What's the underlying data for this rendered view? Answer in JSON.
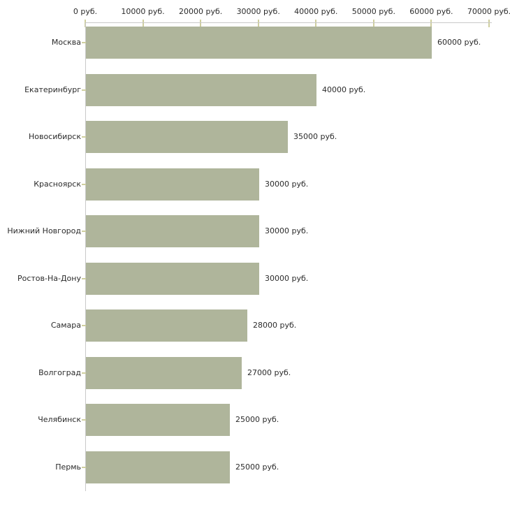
{
  "chart_data": {
    "type": "bar",
    "orientation": "horizontal",
    "title": "",
    "xlabel": "",
    "ylabel": "",
    "unit": "руб.",
    "categories": [
      "Москва",
      "Екатеринбург",
      "Новосибирск",
      "Красноярск",
      "Нижний Новгород",
      "Ростов-На-Дону",
      "Самара",
      "Волгоград",
      "Челябинск",
      "Пермь"
    ],
    "values": [
      60000,
      40000,
      35000,
      30000,
      30000,
      30000,
      28000,
      27000,
      25000,
      25000
    ],
    "value_labels": [
      "60000 руб.",
      "40000 руб.",
      "35000 руб.",
      "30000 руб.",
      "30000 руб.",
      "30000 руб.",
      "28000 руб.",
      "27000 руб.",
      "25000 руб.",
      "25000 руб."
    ],
    "x_ticks": [
      {
        "value": 0,
        "label": "0 руб."
      },
      {
        "value": 10000,
        "label": "10000 руб."
      },
      {
        "value": 20000,
        "label": "20000 руб."
      },
      {
        "value": 30000,
        "label": "30000 руб."
      },
      {
        "value": 40000,
        "label": "40000 руб."
      },
      {
        "value": 50000,
        "label": "50000 руб."
      },
      {
        "value": 60000,
        "label": "60000 руб."
      },
      {
        "value": 70000,
        "label": "70000 руб."
      }
    ],
    "xlim": [
      0,
      70000
    ],
    "grid": false,
    "legend": false,
    "axis_position": "top",
    "colors": {
      "bar": "#afb59b",
      "axis_line": "#c9c9c9",
      "tick_mark": "#cfcf9f",
      "text": "#2b2b2b",
      "background": "#ffffff"
    }
  }
}
